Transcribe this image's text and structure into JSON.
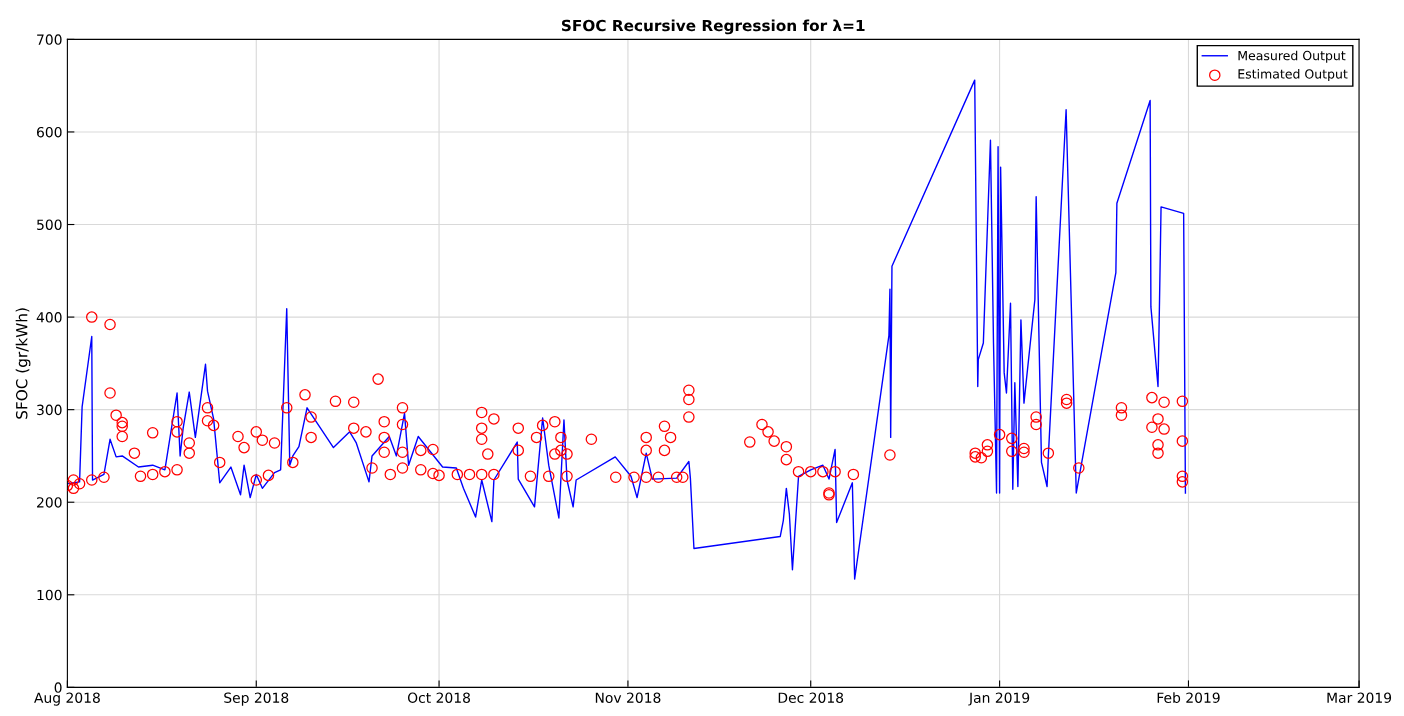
{
  "chart_data": {
    "type": "line",
    "title": "SFOC Recursive Regression for λ=1",
    "ylabel": "SFOC (gr/kWh)",
    "xlim": [
      "2018-08-01",
      "2019-03-01"
    ],
    "xticks": [
      {
        "value": "2018-08-01",
        "label": "Aug 2018"
      },
      {
        "value": "2018-09-01",
        "label": "Sep 2018"
      },
      {
        "value": "2018-10-01",
        "label": "Oct 2018"
      },
      {
        "value": "2018-11-01",
        "label": "Nov 2018"
      },
      {
        "value": "2018-12-01",
        "label": "Dec 2018"
      },
      {
        "value": "2019-01-01",
        "label": "Jan 2019"
      },
      {
        "value": "2019-02-01",
        "label": "Feb 2019"
      },
      {
        "value": "2019-03-01",
        "label": "Mar 2019"
      }
    ],
    "ylim": [
      0,
      700
    ],
    "yticks": [
      0,
      100,
      200,
      300,
      400,
      500,
      600,
      700
    ],
    "grid": true,
    "legend": "top right",
    "series": [
      {
        "name": "Measured Output",
        "color": "#0000ff",
        "marker": "none",
        "x": [
          "2018-08-01",
          "2018-08-03",
          "2018-08-03T10:00",
          "2018-08-05",
          "2018-08-05T03:00",
          "2018-08-07",
          "2018-08-08",
          "2018-08-09",
          "2018-08-10",
          "2018-08-12T16:00",
          "2018-08-15",
          "2018-08-17",
          "2018-08-19",
          "2018-08-19T12:00",
          "2018-08-20",
          "2018-08-21",
          "2018-08-22",
          "2018-08-23T16:00",
          "2018-08-24",
          "2018-08-25",
          "2018-08-26",
          "2018-08-27T20:00",
          "2018-08-29T10:00",
          "2018-08-30",
          "2018-08-31",
          "2018-09-01",
          "2018-09-02",
          "2018-09-04",
          "2018-09-05",
          "2018-09-06",
          "2018-09-06T12:00",
          "2018-09-07",
          "2018-09-08",
          "2018-09-09T08:00",
          "2018-09-13T16:00",
          "2018-09-16T08:00",
          "2018-09-17T10:00",
          "2018-09-19T12:00",
          "2018-09-20",
          "2018-09-22T20:00",
          "2018-09-24",
          "2018-09-25T08:00",
          "2018-09-26",
          "2018-09-27T14:00",
          "2018-10-01T14:00",
          "2018-10-03T20:00",
          "2018-10-05",
          "2018-10-07",
          "2018-10-08",
          "2018-10-09T16:00",
          "2018-10-10",
          "2018-10-13T20:00",
          "2018-10-14",
          "2018-10-16T16:00",
          "2018-10-18",
          "2018-10-19",
          "2018-10-20T16:00",
          "2018-10-21T12:00",
          "2018-10-22",
          "2018-10-23",
          "2018-10-23T12:00",
          "2018-10-29T22:00",
          "2018-11-01T12:00",
          "2018-11-02T12:00",
          "2018-11-04",
          "2018-11-05",
          "2018-11-09",
          "2018-11-11",
          "2018-11-11T06:00",
          "2018-11-11T20:00",
          "2018-11-26",
          "2018-11-26T12:00",
          "2018-11-27",
          "2018-11-27T12:00",
          "2018-11-28",
          "2018-11-29",
          "2018-12-01",
          "2018-12-03",
          "2018-12-04",
          "2018-12-05",
          "2018-12-05T06:00",
          "2018-12-07T20:00",
          "2018-12-08T05:00",
          "2018-12-13T20:00",
          "2018-12-14",
          "2018-12-14T03:00",
          "2018-12-14T08:00",
          "2018-12-27T22:00",
          "2018-12-28T10:00",
          "2018-12-28T12:00",
          "2018-12-29T08:00",
          "2018-12-30T12:00",
          "2018-12-31",
          "2018-12-31T12:00",
          "2018-12-31T18:00",
          "2019-01-01",
          "2019-01-01T04:00",
          "2019-01-01T18:00",
          "2019-01-02T03:00",
          "2019-01-02T19:00",
          "2019-01-03T04:00",
          "2019-01-03T12:00",
          "2019-01-04",
          "2019-01-04T12:00",
          "2019-01-05",
          "2019-01-06T19:00",
          "2019-01-07",
          "2019-01-07T21:00",
          "2019-01-08T19:00",
          "2019-01-09",
          "2019-01-11T22:00",
          "2019-01-13T14:00",
          "2019-01-20T02:00",
          "2019-01-20T06:00",
          "2019-01-25T17:00",
          "2019-01-25T20:00",
          "2019-01-27",
          "2019-01-27T06:00",
          "2019-01-27T12:00",
          "2019-01-31T05:00",
          "2019-01-31T12:00"
        ],
        "values": [
          220,
          222,
          303,
          379,
          224,
          230,
          268,
          249,
          250,
          238,
          240,
          235,
          318,
          250,
          280,
          319,
          270,
          349,
          320,
          290,
          221,
          238,
          208,
          240,
          205,
          230,
          215,
          232,
          235,
          409,
          240,
          250,
          260,
          302,
          259,
          276,
          264,
          222,
          250,
          271,
          250,
          296,
          240,
          271,
          238,
          237,
          215,
          184,
          224,
          179,
          224,
          265,
          225,
          195,
          291,
          240,
          183,
          289,
          224,
          195,
          224,
          249,
          228,
          205,
          253,
          225,
          226,
          244,
          226,
          150,
          163,
          180,
          215,
          187,
          127,
          228,
          235,
          240,
          225,
          257,
          178,
          221,
          117,
          380,
          430,
          270,
          455,
          656,
          325,
          354,
          372,
          591,
          372,
          210,
          584,
          210,
          562,
          340,
          318,
          415,
          214,
          329,
          217,
          397,
          307,
          419,
          530,
          243,
          217,
          250,
          624,
          210,
          448,
          523,
          634,
          411,
          325,
          418,
          519,
          512,
          210
        ]
      },
      {
        "name": "Estimated Output",
        "type": "scatter",
        "color": "#ff0000",
        "marker": "circle",
        "x": [
          "2018-08-01",
          "2018-08-02",
          "2018-08-02",
          "2018-08-03",
          "2018-08-05",
          "2018-08-05",
          "2018-08-07",
          "2018-08-08",
          "2018-08-08",
          "2018-08-09",
          "2018-08-10",
          "2018-08-10",
          "2018-08-10",
          "2018-08-12",
          "2018-08-13",
          "2018-08-15",
          "2018-08-17",
          "2018-08-19",
          "2018-08-15",
          "2018-08-19",
          "2018-08-19",
          "2018-08-21",
          "2018-08-21",
          "2018-08-24",
          "2018-08-24",
          "2018-08-25",
          "2018-08-26",
          "2018-08-29",
          "2018-08-30",
          "2018-09-01",
          "2018-09-01",
          "2018-09-02",
          "2018-09-03",
          "2018-09-04",
          "2018-09-06",
          "2018-09-07",
          "2018-09-09",
          "2018-09-10",
          "2018-09-10",
          "2018-09-14",
          "2018-09-17",
          "2018-09-17",
          "2018-09-19",
          "2018-09-20",
          "2018-09-21",
          "2018-09-22",
          "2018-09-22",
          "2018-09-22",
          "2018-09-23",
          "2018-09-25",
          "2018-09-25",
          "2018-09-25",
          "2018-09-25",
          "2018-09-28",
          "2018-09-28",
          "2018-09-30",
          "2018-09-30",
          "2018-10-01",
          "2018-10-04",
          "2018-10-06",
          "2018-10-08",
          "2018-10-10",
          "2018-10-08",
          "2018-10-08",
          "2018-10-08",
          "2018-10-09",
          "2018-10-10",
          "2018-10-14",
          "2018-10-14",
          "2018-10-17",
          "2018-10-18",
          "2018-10-20",
          "2018-10-20",
          "2018-10-21",
          "2018-10-21",
          "2018-10-22",
          "2018-10-16",
          "2018-10-19",
          "2018-10-22",
          "2018-10-26",
          "2018-10-30",
          "2018-11-02",
          "2018-11-04",
          "2018-11-06",
          "2018-11-04",
          "2018-11-04",
          "2018-11-07",
          "2018-11-07",
          "2018-11-08",
          "2018-11-09",
          "2018-11-10",
          "2018-11-11",
          "2018-11-11",
          "2018-11-11",
          "2018-11-21",
          "2018-11-23",
          "2018-11-24",
          "2018-11-25",
          "2018-11-27",
          "2018-11-27",
          "2018-11-29",
          "2018-12-01",
          "2018-12-03",
          "2018-12-05",
          "2018-12-04",
          "2018-12-04",
          "2018-12-08",
          "2018-12-14",
          "2018-12-28",
          "2018-12-28",
          "2018-12-29",
          "2018-12-30",
          "2018-12-30",
          "2019-01-01",
          "2019-01-03",
          "2019-01-03",
          "2019-01-05",
          "2019-01-05",
          "2019-01-07",
          "2019-01-07",
          "2019-01-09",
          "2019-01-12",
          "2019-01-12",
          "2019-01-14",
          "2019-01-21",
          "2019-01-21",
          "2019-01-26",
          "2019-01-26",
          "2019-01-27",
          "2019-01-27",
          "2019-01-27",
          "2019-01-28",
          "2019-01-28",
          "2019-01-31",
          "2019-01-31",
          "2019-01-31",
          "2019-01-31"
        ],
        "values": [
          218,
          215,
          224,
          220,
          400,
          224,
          227,
          392,
          318,
          294,
          286,
          282,
          271,
          253,
          228,
          230,
          233,
          235,
          275,
          276,
          287,
          264,
          253,
          302,
          288,
          283,
          243,
          271,
          259,
          276,
          224,
          267,
          229,
          264,
          302,
          243,
          316,
          292,
          270,
          309,
          308,
          280,
          276,
          237,
          333,
          287,
          270,
          254,
          230,
          302,
          284,
          254,
          237,
          256,
          235,
          257,
          231,
          229,
          230,
          230,
          230,
          230,
          297,
          280,
          268,
          252,
          290,
          280,
          256,
          270,
          283,
          287,
          252,
          270,
          256,
          252,
          228,
          228,
          228,
          268,
          227,
          227,
          227,
          227,
          270,
          256,
          282,
          256,
          270,
          227,
          227,
          321,
          311,
          292,
          265,
          284,
          276,
          266,
          260,
          246,
          233,
          233,
          233,
          233,
          210,
          208,
          230,
          251,
          253,
          249,
          248,
          255,
          262,
          273,
          255,
          269,
          254,
          258,
          292,
          284,
          253,
          307,
          311,
          237,
          302,
          294,
          313,
          281,
          290,
          262,
          253,
          308,
          279,
          309,
          266,
          228,
          222
        ]
      }
    ]
  }
}
